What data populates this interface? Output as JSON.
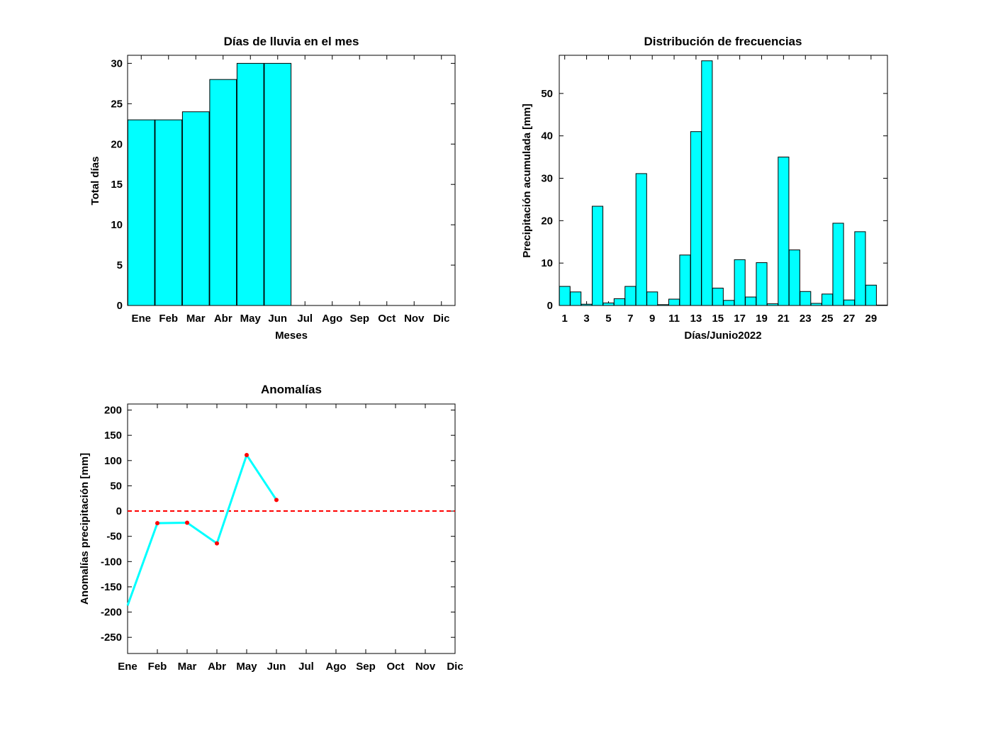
{
  "colors": {
    "bar": "#00ffff",
    "line": "#00ffff",
    "marker": "#ff0000",
    "zero_line": "#ff0000"
  },
  "chart_data": [
    {
      "type": "bar",
      "title": "Días de lluvia en el mes",
      "xlabel": "Meses",
      "ylabel": "Total días",
      "categories": [
        "Ene",
        "Feb",
        "Mar",
        "Abr",
        "May",
        "Jun",
        "Jul",
        "Ago",
        "Sep",
        "Oct",
        "Nov",
        "Dic"
      ],
      "values": [
        23,
        23,
        24,
        28,
        30,
        30,
        null,
        null,
        null,
        null,
        null,
        null
      ],
      "xlim": [
        0.5,
        12.5
      ],
      "ylim": [
        0,
        31
      ],
      "yticks": [
        0,
        5,
        10,
        15,
        20,
        25,
        30
      ]
    },
    {
      "type": "bar",
      "title": "Distribución de frecuencias",
      "xlabel": "Días/Junio2022",
      "ylabel": "Precipitación acumulada [mm]",
      "x": [
        1,
        2,
        3,
        4,
        5,
        6,
        7,
        8,
        9,
        10,
        11,
        12,
        13,
        14,
        15,
        16,
        17,
        18,
        19,
        20,
        21,
        22,
        23,
        24,
        25,
        26,
        27,
        28,
        29,
        30
      ],
      "values": [
        4.5,
        3.2,
        0.3,
        23.4,
        0.6,
        1.6,
        4.5,
        31.1,
        3.2,
        0.2,
        1.5,
        11.9,
        41.0,
        57.7,
        4.1,
        1.2,
        10.8,
        2.0,
        10.1,
        0.4,
        35.0,
        13.1,
        3.3,
        0.5,
        2.7,
        19.4,
        1.3,
        17.4,
        4.8,
        0.1
      ],
      "xticks": [
        1,
        3,
        5,
        7,
        9,
        11,
        13,
        15,
        17,
        19,
        21,
        23,
        25,
        27,
        29
      ],
      "xlim": [
        0.5,
        30.5
      ],
      "ylim": [
        0,
        59
      ],
      "yticks": [
        0,
        10,
        20,
        30,
        40,
        50
      ]
    },
    {
      "type": "line",
      "title": "Anomalías",
      "xlabel": "",
      "ylabel": "Anomalías precipitación [mm]",
      "categories": [
        "Ene",
        "Feb",
        "Mar",
        "Abr",
        "May",
        "Jun",
        "Jul",
        "Ago",
        "Sep",
        "Oct",
        "Nov",
        "Dic"
      ],
      "values": [
        -187,
        -24,
        -23,
        -64,
        111,
        22,
        null,
        null,
        null,
        null,
        null,
        null
      ],
      "reference_line": 0,
      "xlim": [
        1,
        12
      ],
      "ylim": [
        -282,
        212
      ],
      "yticks": [
        -250,
        -200,
        -150,
        -100,
        -50,
        0,
        50,
        100,
        150,
        200
      ]
    }
  ]
}
